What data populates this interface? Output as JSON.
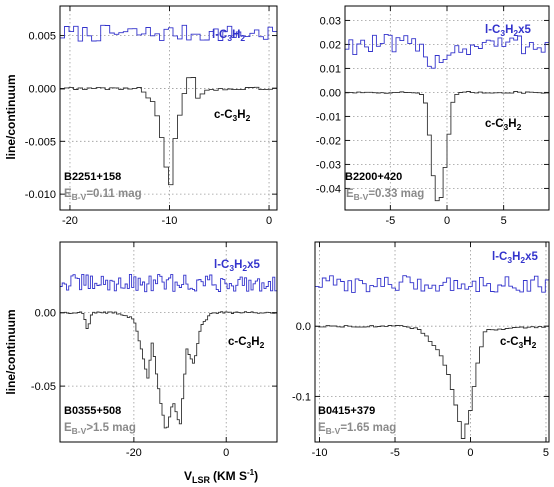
{
  "figure": {
    "y_axis_label": "line/continuum",
    "x_axis_label_main": "V",
    "x_axis_label_sub": "LSR",
    "x_axis_label_unit": "(KM S",
    "x_axis_label_exp": "-1",
    "x_axis_label_close": ")"
  },
  "chart_data": [
    {
      "type": "line",
      "source": "B2251+158",
      "ebv_main": "E",
      "ebv_sub": "B-V",
      "ebv_value": "=0.11 mag",
      "xlim": [
        -21,
        0.8
      ],
      "ylim": [
        -0.0115,
        0.0078
      ],
      "xticks": [
        -20,
        -10,
        0
      ],
      "yticks": [
        -0.01,
        -0.005,
        0.0,
        0.005
      ],
      "ytick_labels": [
        "-0.010",
        "-0.005",
        "0.000",
        "0.005"
      ],
      "series": [
        {
          "role": "l",
          "label_prefix": "l-C",
          "label_sub1": "3",
          "label_mid": "H",
          "label_sub2": "2",
          "label_suffix": "",
          "color": "#3333cc",
          "x": [
            -21,
            -18,
            -15,
            -12,
            -9,
            -6,
            -3,
            0,
            0.8
          ],
          "y": [
            0.0052,
            0.0052,
            0.0052,
            0.0052,
            0.0052,
            0.0052,
            0.0052,
            0.0052,
            0.0052
          ]
        },
        {
          "role": "c",
          "label_prefix": "c-C",
          "label_sub1": "3",
          "label_mid": "H",
          "label_sub2": "2",
          "label_suffix": "",
          "color": "#333333",
          "x": [
            -21,
            -13,
            -11.5,
            -10.5,
            -10,
            -9.5,
            -8.5,
            -7.8,
            -7.2,
            -6,
            -3,
            0.8
          ],
          "y": [
            0.0,
            0.0,
            -0.0015,
            -0.006,
            -0.0105,
            -0.005,
            -0.0005,
            0.002,
            -0.001,
            -0.0001,
            0.0,
            0.0
          ]
        }
      ]
    },
    {
      "type": "line",
      "source": "B2200+420",
      "ebv_main": "E",
      "ebv_sub": "B-V",
      "ebv_value": "=0.33 mag",
      "xlim": [
        -9,
        9
      ],
      "ylim": [
        -0.049,
        0.036
      ],
      "xticks": [
        -5,
        0,
        5
      ],
      "yticks": [
        -0.04,
        -0.03,
        -0.02,
        -0.01,
        0.0,
        0.01,
        0.02,
        0.03
      ],
      "ytick_labels": [
        "-0.04",
        "-0.03",
        "-0.02",
        "-0.01",
        "0.00",
        "0.01",
        "0.02",
        "0.03"
      ],
      "series": [
        {
          "role": "l",
          "label_prefix": "l-C",
          "label_sub1": "3",
          "label_mid": "H",
          "label_sub2": "2",
          "label_suffix": "x5",
          "color": "#3333cc",
          "x": [
            -9,
            -6,
            -3,
            -1,
            0,
            3,
            6,
            9
          ],
          "y": [
            0.02,
            0.02,
            0.019,
            0.013,
            0.017,
            0.02,
            0.02,
            0.02
          ]
        },
        {
          "role": "c",
          "label_prefix": "c-C",
          "label_sub1": "3",
          "label_mid": "H",
          "label_sub2": "2",
          "label_suffix": "",
          "color": "#333333",
          "x": [
            -9,
            -3,
            -2,
            -1.5,
            -1,
            -0.5,
            0,
            0.5,
            1,
            3,
            9
          ],
          "y": [
            0.0,
            0.0,
            -0.001,
            -0.02,
            -0.046,
            -0.044,
            -0.025,
            -0.004,
            0.0,
            0.0,
            0.0
          ]
        }
      ]
    },
    {
      "type": "line",
      "source": "B0355+508",
      "ebv_main": "E",
      "ebv_sub": "B-V",
      "ebv_value": ">1.5 mag",
      "xlim": [
        -36,
        11
      ],
      "ylim": [
        -0.088,
        0.048
      ],
      "xticks": [
        -20,
        0
      ],
      "yticks": [
        -0.05,
        0.0
      ],
      "ytick_labels": [
        "-0.05",
        "0.00"
      ],
      "series": [
        {
          "role": "l",
          "label_prefix": "l-C",
          "label_sub1": "3",
          "label_mid": "H",
          "label_sub2": "2",
          "label_suffix": "x5",
          "color": "#3333cc",
          "x": [
            -34,
            -26,
            -18,
            -10,
            -2,
            6,
            10
          ],
          "y": [
            0.02,
            0.02,
            0.02,
            0.02,
            0.02,
            0.02,
            0.02
          ]
        },
        {
          "role": "c",
          "label_prefix": "c-C",
          "label_sub1": "3",
          "label_mid": "H",
          "label_sub2": "2",
          "label_suffix": "",
          "color": "#333333",
          "x": [
            -34,
            -31,
            -30,
            -29,
            -24,
            -20,
            -18,
            -17,
            -16,
            -14.5,
            -13,
            -11.5,
            -10,
            -8.5,
            -7,
            -5.5,
            -4,
            -3,
            10
          ],
          "y": [
            0.0,
            0.0,
            -0.012,
            0.0,
            0.0,
            -0.004,
            -0.03,
            -0.045,
            -0.02,
            -0.055,
            -0.082,
            -0.06,
            -0.078,
            -0.025,
            -0.035,
            -0.01,
            -0.003,
            0.0,
            0.0
          ]
        }
      ]
    },
    {
      "type": "line",
      "source": "B0415+379",
      "ebv_main": "E",
      "ebv_sub": "B-V",
      "ebv_value": "=1.65 mag",
      "xlim": [
        -10.3,
        5.2
      ],
      "ylim": [
        -0.165,
        0.12
      ],
      "xticks": [
        -10,
        -5,
        0,
        5
      ],
      "yticks": [
        -0.1,
        0.0
      ],
      "ytick_labels": [
        "-0.1",
        "0.0"
      ],
      "series": [
        {
          "role": "l",
          "label_prefix": "l-C",
          "label_sub1": "3",
          "label_mid": "H",
          "label_sub2": "2",
          "label_suffix": "x5",
          "color": "#3333cc",
          "x": [
            -10.3,
            -7,
            -4,
            -1,
            2,
            5.2
          ],
          "y": [
            0.06,
            0.06,
            0.06,
            0.06,
            0.06,
            0.06
          ]
        },
        {
          "role": "c",
          "label_prefix": "c-C",
          "label_sub1": "3",
          "label_mid": "H",
          "label_sub2": "2",
          "label_suffix": "",
          "color": "#333333",
          "x": [
            -10.3,
            -4.5,
            -3.5,
            -3,
            -2.5,
            -2,
            -1.5,
            -1,
            -0.5,
            0,
            0.5,
            1,
            5.2
          ],
          "y": [
            0.0,
            0.0,
            -0.004,
            -0.012,
            -0.025,
            -0.04,
            -0.065,
            -0.11,
            -0.16,
            -0.12,
            -0.05,
            -0.005,
            0.0
          ]
        }
      ]
    }
  ]
}
